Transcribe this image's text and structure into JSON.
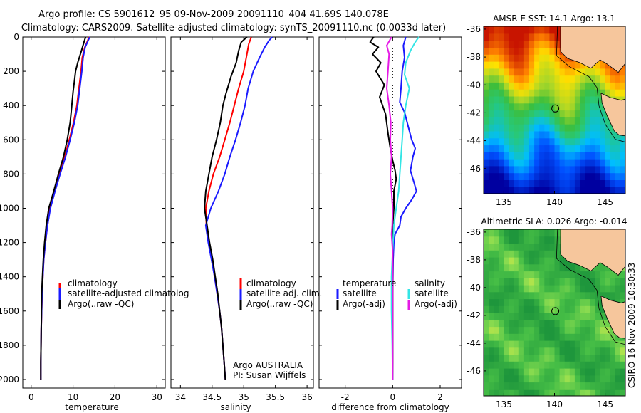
{
  "figure": {
    "title_line1": "Argo profile: CS 5901612_95 09-Nov-2009 20091110_404 41.69S 140.078E",
    "title_line2": "Climatology: CARS2009. Satellite-adjusted climatology: synTS_20091110.nc (0.0033d later)",
    "side_label": "CSIRO 16-Nov-2009 10:30:33"
  },
  "colors": {
    "climatology": "#ff0000",
    "satellite": "#1a1aff",
    "argo": "#000000",
    "satellite_salinity": "#33e5e5",
    "argo_salinity": "#e51ae5",
    "land": "#f6c69c"
  },
  "chart_data": [
    {
      "type": "line",
      "xlabel": "temperature",
      "ylabel": "",
      "xlim": [
        -2,
        32
      ],
      "ylim": [
        0,
        2050
      ],
      "y_inverted": true,
      "xticks": [
        "0",
        "10",
        "20",
        "30"
      ],
      "yticks": [
        "0",
        "200",
        "400",
        "600",
        "800",
        "1000",
        "1200",
        "1400",
        "1600",
        "1800",
        "2000"
      ],
      "legend": [
        "climatology",
        "satellite-adjusted climatolog",
        "Argo(..raw -QC)"
      ],
      "legend_position": "lower-right",
      "series": [
        {
          "name": "climatology",
          "color": "red",
          "points": [
            [
              13.8,
              0
            ],
            [
              13.5,
              20
            ],
            [
              12.8,
              60
            ],
            [
              12.2,
              120
            ],
            [
              11.9,
              200
            ],
            [
              11.4,
              300
            ],
            [
              10.9,
              400
            ],
            [
              10.1,
              500
            ],
            [
              9.1,
              600
            ],
            [
              8.0,
              700
            ],
            [
              6.7,
              800
            ],
            [
              5.5,
              900
            ],
            [
              4.5,
              1000
            ],
            [
              3.9,
              1100
            ],
            [
              3.4,
              1200
            ],
            [
              3.0,
              1300
            ],
            [
              2.8,
              1400
            ],
            [
              2.6,
              1500
            ],
            [
              2.5,
              1600
            ],
            [
              2.4,
              1700
            ],
            [
              2.35,
              1800
            ],
            [
              2.3,
              1900
            ],
            [
              2.3,
              2000
            ]
          ]
        },
        {
          "name": "satellite-adjusted climatolog",
          "color": "blue",
          "points": [
            [
              14.0,
              0
            ],
            [
              13.6,
              20
            ],
            [
              12.9,
              60
            ],
            [
              12.4,
              120
            ],
            [
              12.1,
              200
            ],
            [
              11.6,
              300
            ],
            [
              11.1,
              400
            ],
            [
              10.3,
              500
            ],
            [
              9.3,
              600
            ],
            [
              8.2,
              700
            ],
            [
              6.9,
              800
            ],
            [
              5.7,
              900
            ],
            [
              4.6,
              1000
            ],
            [
              3.9,
              1100
            ],
            [
              3.4,
              1200
            ],
            [
              3.0,
              1300
            ],
            [
              2.8,
              1400
            ],
            [
              2.6,
              1500
            ],
            [
              2.5,
              1600
            ],
            [
              2.4,
              1700
            ],
            [
              2.35,
              1800
            ],
            [
              2.3,
              1900
            ],
            [
              2.3,
              2000
            ]
          ]
        },
        {
          "name": "Argo(..raw -QC)",
          "color": "black",
          "points": [
            [
              13.0,
              0
            ],
            [
              12.6,
              30
            ],
            [
              12.0,
              80
            ],
            [
              11.1,
              150
            ],
            [
              10.6,
              200
            ],
            [
              10.3,
              260
            ],
            [
              10.0,
              320
            ],
            [
              9.7,
              400
            ],
            [
              9.3,
              500
            ],
            [
              8.6,
              600
            ],
            [
              7.7,
              700
            ],
            [
              6.5,
              800
            ],
            [
              5.4,
              900
            ],
            [
              4.2,
              1000
            ],
            [
              3.6,
              1100
            ],
            [
              3.2,
              1200
            ],
            [
              2.9,
              1300
            ],
            [
              2.7,
              1400
            ],
            [
              2.5,
              1500
            ],
            [
              2.45,
              1600
            ],
            [
              2.4,
              1700
            ],
            [
              2.35,
              1800
            ],
            [
              2.3,
              1900
            ],
            [
              2.3,
              2000
            ]
          ]
        }
      ]
    },
    {
      "type": "line",
      "xlabel": "salinity",
      "ylabel": "",
      "xlim": [
        33.85,
        36.1
      ],
      "ylim": [
        0,
        2050
      ],
      "y_inverted": true,
      "xticks": [
        "34",
        "34.5",
        "35",
        "35.5",
        "36"
      ],
      "legend": [
        "climatology",
        "satellite adj. clim.",
        "Argo(..raw -QC)"
      ],
      "legend_position": "lower-right",
      "annotation_line1": "Argo AUSTRALIA",
      "annotation_line2": "PI: Susan Wijffels",
      "series": [
        {
          "name": "climatology",
          "color": "red",
          "points": [
            [
              35.12,
              0
            ],
            [
              35.08,
              40
            ],
            [
              35.05,
              100
            ],
            [
              35.0,
              200
            ],
            [
              34.92,
              300
            ],
            [
              34.85,
              400
            ],
            [
              34.78,
              500
            ],
            [
              34.7,
              600
            ],
            [
              34.62,
              700
            ],
            [
              34.52,
              800
            ],
            [
              34.45,
              900
            ],
            [
              34.4,
              1000
            ],
            [
              34.41,
              1100
            ],
            [
              34.45,
              1200
            ],
            [
              34.5,
              1300
            ],
            [
              34.54,
              1400
            ],
            [
              34.58,
              1500
            ],
            [
              34.62,
              1600
            ],
            [
              34.65,
              1700
            ],
            [
              34.67,
              1800
            ],
            [
              34.69,
              1900
            ],
            [
              34.71,
              2000
            ]
          ]
        },
        {
          "name": "satellite adj. clim.",
          "color": "blue",
          "points": [
            [
              35.45,
              0
            ],
            [
              35.4,
              20
            ],
            [
              35.33,
              60
            ],
            [
              35.25,
              120
            ],
            [
              35.15,
              200
            ],
            [
              35.07,
              300
            ],
            [
              35.02,
              400
            ],
            [
              34.95,
              500
            ],
            [
              34.87,
              600
            ],
            [
              34.78,
              700
            ],
            [
              34.7,
              800
            ],
            [
              34.6,
              900
            ],
            [
              34.48,
              1000
            ],
            [
              34.4,
              1100
            ],
            [
              34.44,
              1200
            ],
            [
              34.49,
              1300
            ],
            [
              34.54,
              1400
            ],
            [
              34.58,
              1500
            ],
            [
              34.62,
              1600
            ],
            [
              34.65,
              1700
            ],
            [
              34.67,
              1800
            ],
            [
              34.69,
              1900
            ],
            [
              34.71,
              2000
            ]
          ]
        },
        {
          "name": "Argo(..raw -QC)",
          "color": "black",
          "points": [
            [
              35.05,
              0
            ],
            [
              34.96,
              30
            ],
            [
              34.92,
              80
            ],
            [
              34.88,
              150
            ],
            [
              34.8,
              230
            ],
            [
              34.72,
              330
            ],
            [
              34.67,
              400
            ],
            [
              34.63,
              500
            ],
            [
              34.57,
              600
            ],
            [
              34.5,
              700
            ],
            [
              34.45,
              800
            ],
            [
              34.4,
              900
            ],
            [
              34.38,
              1000
            ],
            [
              34.42,
              1100
            ],
            [
              34.46,
              1200
            ],
            [
              34.51,
              1300
            ],
            [
              34.55,
              1400
            ],
            [
              34.59,
              1500
            ],
            [
              34.62,
              1600
            ],
            [
              34.65,
              1700
            ],
            [
              34.67,
              1800
            ],
            [
              34.69,
              1900
            ],
            [
              34.71,
              2000
            ]
          ]
        }
      ]
    },
    {
      "type": "line",
      "xlabel": "difference from climatology",
      "ylabel": "",
      "xlim": [
        -3.1,
        2.9
      ],
      "ylim": [
        0,
        2050
      ],
      "y_inverted": true,
      "xticks": [
        "-2",
        "0",
        "2"
      ],
      "zero_line": "dotted",
      "legend_left": {
        "heading": "temperature",
        "items": [
          "satellite",
          "Argo(-adj)"
        ]
      },
      "legend_right": {
        "heading": "salinity",
        "items": [
          "satellite",
          "Argo(-adj)"
        ]
      },
      "legend_position": "lower-center",
      "series": [
        {
          "name": "temperature satellite",
          "color": "blue",
          "points": [
            [
              0.55,
              0
            ],
            [
              0.45,
              50
            ],
            [
              0.5,
              120
            ],
            [
              0.4,
              200
            ],
            [
              0.35,
              300
            ],
            [
              0.3,
              380
            ],
            [
              0.5,
              440
            ],
            [
              0.65,
              520
            ],
            [
              0.8,
              600
            ],
            [
              0.95,
              650
            ],
            [
              0.85,
              700
            ],
            [
              0.75,
              780
            ],
            [
              0.9,
              850
            ],
            [
              1.0,
              900
            ],
            [
              0.8,
              950
            ],
            [
              0.55,
              1000
            ],
            [
              0.35,
              1050
            ],
            [
              0.3,
              1100
            ],
            [
              0.1,
              1150
            ],
            [
              0.05,
              1200
            ],
            [
              0.02,
              1300
            ],
            [
              0.0,
              1500
            ],
            [
              0.0,
              1700
            ],
            [
              0.0,
              2000
            ]
          ]
        },
        {
          "name": "temperature Argo(-adj)",
          "color": "black",
          "points": [
            [
              -0.8,
              0
            ],
            [
              -0.95,
              30
            ],
            [
              -0.6,
              60
            ],
            [
              -0.85,
              100
            ],
            [
              -0.5,
              150
            ],
            [
              -0.7,
              200
            ],
            [
              -0.35,
              280
            ],
            [
              -0.55,
              350
            ],
            [
              -0.3,
              450
            ],
            [
              -0.2,
              560
            ],
            [
              -0.1,
              650
            ],
            [
              0.0,
              720
            ],
            [
              0.1,
              780
            ],
            [
              0.15,
              830
            ],
            [
              0.05,
              900
            ],
            [
              0.05,
              1000
            ],
            [
              0.0,
              1100
            ],
            [
              0.0,
              1300
            ],
            [
              0.0,
              1600
            ],
            [
              0.0,
              2000
            ]
          ]
        },
        {
          "name": "salinity satellite",
          "color": "cyan",
          "points": [
            [
              1.1,
              0
            ],
            [
              0.95,
              30
            ],
            [
              0.75,
              80
            ],
            [
              0.55,
              150
            ],
            [
              0.5,
              220
            ],
            [
              0.7,
              300
            ],
            [
              0.55,
              400
            ],
            [
              0.45,
              500
            ],
            [
              0.4,
              600
            ],
            [
              0.35,
              700
            ],
            [
              0.3,
              800
            ],
            [
              0.25,
              900
            ],
            [
              0.15,
              1000
            ],
            [
              0.05,
              1100
            ],
            [
              0.0,
              1250
            ],
            [
              -0.05,
              1400
            ],
            [
              -0.05,
              1600
            ],
            [
              -0.02,
              1800
            ],
            [
              0.0,
              2000
            ]
          ]
        },
        {
          "name": "salinity Argo(-adj)",
          "color": "magenta",
          "points": [
            [
              -0.05,
              0
            ],
            [
              -0.25,
              50
            ],
            [
              -0.15,
              100
            ],
            [
              -0.2,
              200
            ],
            [
              -0.25,
              300
            ],
            [
              -0.15,
              400
            ],
            [
              -0.08,
              500
            ],
            [
              -0.1,
              600
            ],
            [
              -0.05,
              700
            ],
            [
              -0.1,
              800
            ],
            [
              -0.05,
              900
            ],
            [
              0.0,
              1000
            ],
            [
              -0.02,
              1100
            ],
            [
              -0.05,
              1150
            ],
            [
              0.0,
              1250
            ],
            [
              0.0,
              1500
            ],
            [
              0.0,
              2000
            ]
          ]
        }
      ]
    },
    {
      "type": "heatmap",
      "title": "AMSR-E SST: 14.1 Argo: 13.1",
      "xticks": [
        "135",
        "140",
        "145"
      ],
      "yticks": [
        "-36",
        "-38",
        "-40",
        "-42",
        "-44",
        "-46"
      ],
      "xlim": [
        133,
        147
      ],
      "ylim": [
        -47.8,
        -35.8
      ],
      "marker": {
        "lon": 140.078,
        "lat": -41.69
      }
    },
    {
      "type": "heatmap",
      "title": "Altimetric SLA: 0.026 Argo: -0.014",
      "xticks": [
        "135",
        "140",
        "145"
      ],
      "yticks": [
        "-36",
        "-38",
        "-40",
        "-42",
        "-44",
        "-46"
      ],
      "xlim": [
        133,
        147
      ],
      "ylim": [
        -47.8,
        -35.8
      ],
      "marker": {
        "lon": 140.078,
        "lat": -41.69
      }
    }
  ]
}
